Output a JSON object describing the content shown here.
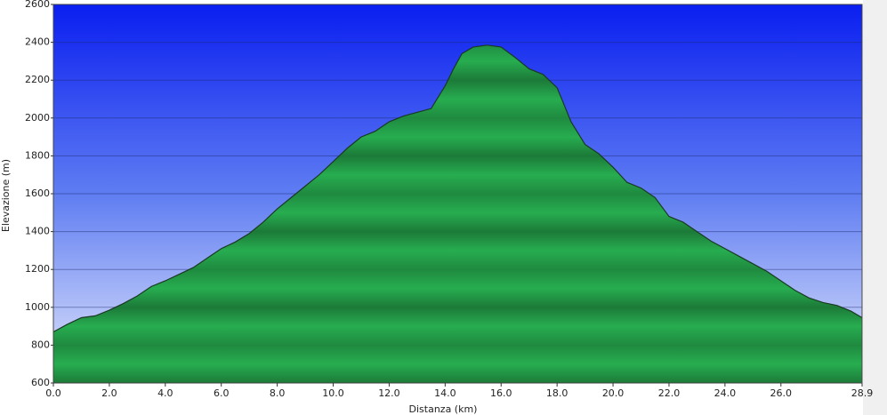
{
  "chart_data": {
    "type": "area",
    "x_label": "Distanza  (km)",
    "y_label": "Elevazione (m)",
    "x": [
      0,
      0.5,
      1.0,
      1.5,
      2.0,
      2.5,
      3.0,
      3.5,
      4.0,
      4.5,
      5.0,
      5.5,
      6.0,
      6.5,
      7.0,
      7.5,
      8.0,
      8.5,
      9.0,
      9.5,
      10.0,
      10.5,
      11.0,
      11.5,
      12.0,
      12.5,
      13.0,
      13.5,
      14.0,
      14.3,
      14.6,
      15.0,
      15.5,
      16.0,
      16.5,
      17.0,
      17.5,
      18.0,
      18.5,
      19.0,
      19.5,
      20.0,
      20.5,
      21.0,
      21.5,
      22.0,
      22.5,
      23.0,
      23.5,
      24.0,
      24.5,
      25.0,
      25.5,
      26.0,
      26.5,
      27.0,
      27.5,
      28.0,
      28.5,
      28.9
    ],
    "values": [
      870,
      910,
      945,
      955,
      985,
      1020,
      1060,
      1110,
      1140,
      1175,
      1210,
      1260,
      1310,
      1345,
      1390,
      1450,
      1520,
      1580,
      1640,
      1700,
      1770,
      1840,
      1900,
      1930,
      1980,
      2010,
      2030,
      2050,
      2170,
      2260,
      2340,
      2375,
      2385,
      2375,
      2320,
      2260,
      2230,
      2160,
      1980,
      1860,
      1810,
      1740,
      1660,
      1630,
      1580,
      1480,
      1450,
      1400,
      1350,
      1310,
      1270,
      1230,
      1190,
      1140,
      1090,
      1050,
      1025,
      1010,
      980,
      945
    ],
    "color": "#22a24a",
    "xlim": [
      0,
      28.9
    ],
    "xticks": [
      {
        "value": 0,
        "label": "0.0"
      },
      {
        "value": 2,
        "label": "2.0"
      },
      {
        "value": 4,
        "label": "4.0"
      },
      {
        "value": 6,
        "label": "6.0"
      },
      {
        "value": 8,
        "label": "8.0"
      },
      {
        "value": 10,
        "label": "10.0"
      },
      {
        "value": 12,
        "label": "12.0"
      },
      {
        "value": 14,
        "label": "14.0"
      },
      {
        "value": 16,
        "label": "16.0"
      },
      {
        "value": 18,
        "label": "18.0"
      },
      {
        "value": 20,
        "label": "20.0"
      },
      {
        "value": 22,
        "label": "22.0"
      },
      {
        "value": 24,
        "label": "24.0"
      },
      {
        "value": 26,
        "label": "26.0"
      },
      28.9
    ],
    "ylim": [
      600,
      2600
    ],
    "yticks": [
      600,
      800,
      1000,
      1200,
      1400,
      1600,
      1800,
      2000,
      2200,
      2400,
      2600
    ],
    "grid": true
  }
}
